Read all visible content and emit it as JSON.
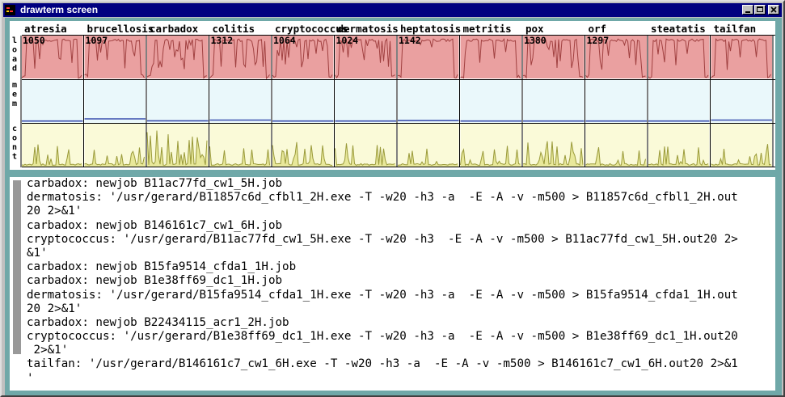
{
  "window": {
    "title": "drawterm screen"
  },
  "stats": {
    "row_labels": [
      "load",
      "mem",
      "cont"
    ],
    "colors": {
      "load_bg": "#eaa0a0",
      "load_line": "#a04040",
      "mem_bg": "#eaf8fb",
      "mem_line": "#3b4fae",
      "cont_bg": "#fafad8",
      "cont_line": "#9a9a3a",
      "cont_fill": "#e8e89a"
    },
    "machines": [
      {
        "name": "atresia",
        "load": "1050",
        "mem_level": 0.01
      },
      {
        "name": "brucellosis",
        "load": "1097",
        "mem_level": 0.1
      },
      {
        "name": "carbadox",
        "load": "",
        "mem_level": 0.02
      },
      {
        "name": "colitis",
        "load": "1312",
        "mem_level": 0.05
      },
      {
        "name": "cryptococcus",
        "load": "1064",
        "mem_level": 0.01
      },
      {
        "name": "dermatosis",
        "load": "1024",
        "mem_level": 0.01
      },
      {
        "name": "heptatosis",
        "load": "1142",
        "mem_level": 0.03
      },
      {
        "name": "metritis",
        "load": "",
        "mem_level": 0.01
      },
      {
        "name": "pox",
        "load": "1380",
        "mem_level": 0.01
      },
      {
        "name": "orf",
        "load": "1297",
        "mem_level": 0.01
      },
      {
        "name": "steatatis",
        "load": "",
        "mem_level": 0.01
      },
      {
        "name": "tailfan",
        "load": "",
        "mem_level": 0.05
      }
    ]
  },
  "terminal": {
    "lines": [
      "carbadox: newjob B11ac77fd_cw1_5H.job",
      "dermatosis: '/usr/gerard/B11857c6d_cfbl1_2H.exe -T -w20 -h3 -a  -E -A -v -m500 > B11857c6d_cfbl1_2H.out",
      "20 2>&1'",
      "carbadox: newjob B146161c7_cw1_6H.job",
      "cryptococcus: '/usr/gerard/B11ac77fd_cw1_5H.exe -T -w20 -h3  -E -A -v -m500 > B11ac77fd_cw1_5H.out20 2>",
      "&1'",
      "carbadox: newjob B15fa9514_cfda1_1H.job",
      "carbadox: newjob B1e38ff69_dc1_1H.job",
      "dermatosis: '/usr/gerard/B15fa9514_cfda1_1H.exe -T -w20 -h3 -a  -E -A -v -m500 > B15fa9514_cfda1_1H.out",
      "20 2>&1'",
      "carbadox: newjob B22434115_acr1_2H.job",
      "cryptococcus: '/usr/gerard/B1e38ff69_dc1_1H.exe -T -w20 -h3 -a  -E -A -v -m500 > B1e38ff69_dc1_1H.out20",
      " 2>&1'",
      "tailfan: '/usr/gerard/B146161c7_cw1_6H.exe -T -w20 -h3 -a  -E -A -v -m500 > B146161c7_cw1_6H.out20 2>&1",
      "'"
    ]
  }
}
